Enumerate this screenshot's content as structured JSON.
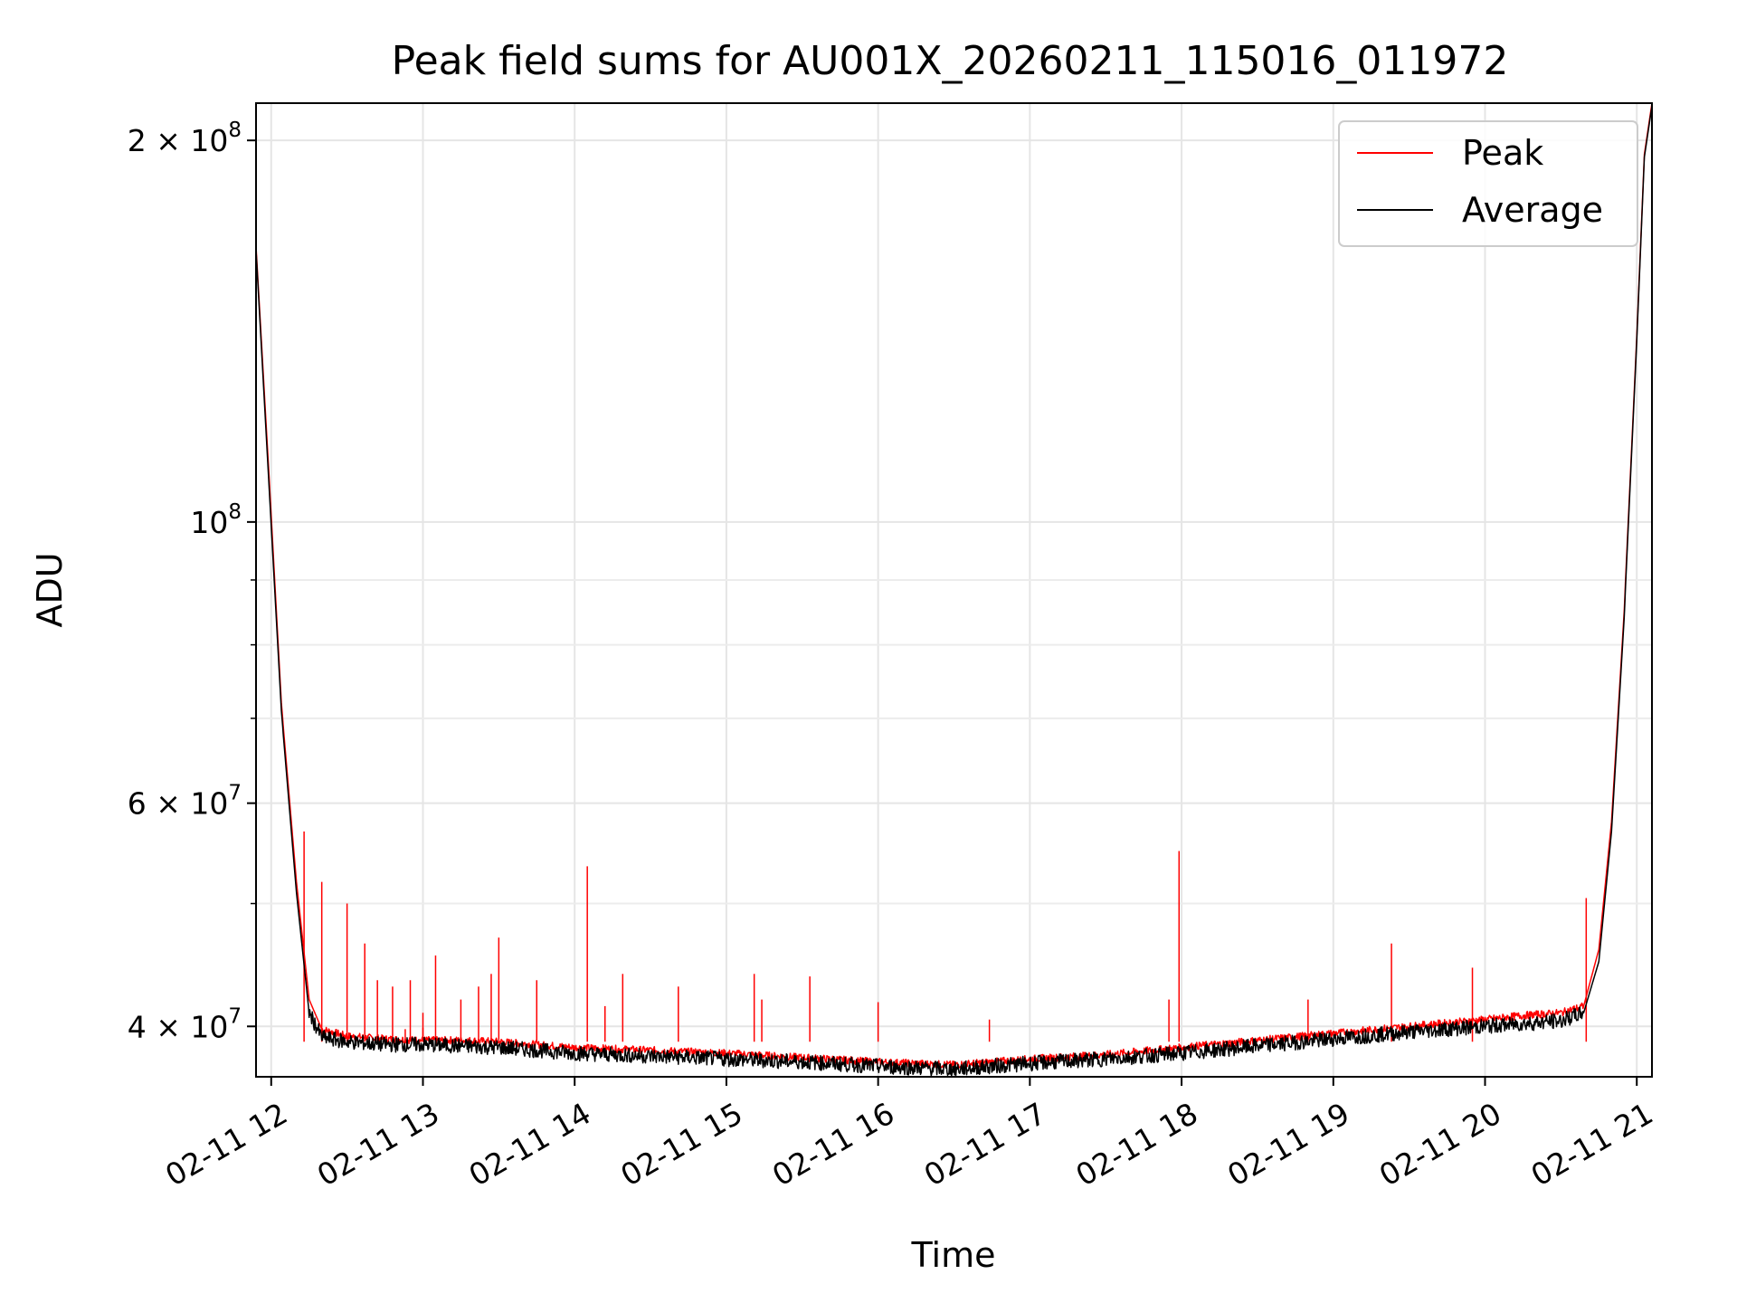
{
  "chart_data": {
    "type": "line",
    "title": "Peak field sums for AU001X_20260211_115016_011972",
    "xlabel": "Time",
    "ylabel": "ADU",
    "yscale": "log",
    "ylim": [
      36500000,
      214000000
    ],
    "xlim": [
      "2026-02-11 11:54",
      "2026-02-11 21:06"
    ],
    "grid": true,
    "legend_position": "top-right",
    "x_ticks": [
      {
        "value": "2026-02-11 12:00",
        "label": "02-11 12"
      },
      {
        "value": "2026-02-11 13:00",
        "label": "02-11 13"
      },
      {
        "value": "2026-02-11 14:00",
        "label": "02-11 14"
      },
      {
        "value": "2026-02-11 15:00",
        "label": "02-11 15"
      },
      {
        "value": "2026-02-11 16:00",
        "label": "02-11 16"
      },
      {
        "value": "2026-02-11 17:00",
        "label": "02-11 17"
      },
      {
        "value": "2026-02-11 18:00",
        "label": "02-11 18"
      },
      {
        "value": "2026-02-11 19:00",
        "label": "02-11 19"
      },
      {
        "value": "2026-02-11 20:00",
        "label": "02-11 20"
      },
      {
        "value": "2026-02-11 21:00",
        "label": "02-11 21"
      }
    ],
    "y_major_ticks": [
      {
        "value": 40000000,
        "base": "4 × 10",
        "exp": "7"
      },
      {
        "value": 60000000,
        "base": "6 × 10",
        "exp": "7"
      },
      {
        "value": 100000000,
        "base": "10",
        "exp": "8"
      },
      {
        "value": 200000000,
        "base": "2 × 10",
        "exp": "8"
      }
    ],
    "y_minor_ticks": [
      50000000,
      70000000,
      80000000,
      90000000
    ],
    "series": [
      {
        "name": "Peak",
        "color": "#ff0000",
        "x": [
          "2026-02-11 11:54",
          "2026-02-11 11:59",
          "2026-02-11 12:04",
          "2026-02-11 12:10",
          "2026-02-11 12:15",
          "2026-02-11 12:20",
          "2026-02-11 12:30",
          "2026-02-11 12:45",
          "2026-02-11 13:00",
          "2026-02-11 13:15",
          "2026-02-11 13:30",
          "2026-02-11 13:45",
          "2026-02-11 14:00",
          "2026-02-11 14:30",
          "2026-02-11 15:00",
          "2026-02-11 15:30",
          "2026-02-11 16:00",
          "2026-02-11 16:30",
          "2026-02-11 17:00",
          "2026-02-11 17:30",
          "2026-02-11 18:00",
          "2026-02-11 18:30",
          "2026-02-11 19:00",
          "2026-02-11 19:30",
          "2026-02-11 20:00",
          "2026-02-11 20:15",
          "2026-02-11 20:30",
          "2026-02-11 20:39",
          "2026-02-11 20:45",
          "2026-02-11 20:50",
          "2026-02-11 20:55",
          "2026-02-11 21:00",
          "2026-02-11 21:03",
          "2026-02-11 21:06"
        ],
        "y": [
          165000000,
          110000000,
          72000000,
          52000000,
          42000000,
          39800000,
          39300000,
          39100000,
          39000000,
          39000000,
          38900000,
          38700000,
          38500000,
          38300000,
          38100000,
          37800000,
          37500000,
          37300000,
          37700000,
          38000000,
          38500000,
          39000000,
          39500000,
          40000000,
          40500000,
          40800000,
          41000000,
          41500000,
          46000000,
          58000000,
          85000000,
          140000000,
          195000000,
          214000000
        ],
        "spikes": [
          {
            "x": "2026-02-11 12:13",
            "y": 57000000
          },
          {
            "x": "2026-02-11 12:20",
            "y": 52000000
          },
          {
            "x": "2026-02-11 12:30",
            "y": 50000000
          },
          {
            "x": "2026-02-11 12:37",
            "y": 46500000
          },
          {
            "x": "2026-02-11 12:42",
            "y": 43500000
          },
          {
            "x": "2026-02-11 12:53",
            "y": 39800000
          },
          {
            "x": "2026-02-11 13:00",
            "y": 39900000
          },
          {
            "x": "2026-02-11 12:48",
            "y": 43000000
          },
          {
            "x": "2026-02-11 12:55",
            "y": 43500000
          },
          {
            "x": "2026-02-11 13:00",
            "y": 41000000
          },
          {
            "x": "2026-02-11 13:05",
            "y": 45500000
          },
          {
            "x": "2026-02-11 13:15",
            "y": 42000000
          },
          {
            "x": "2026-02-11 13:22",
            "y": 43000000
          },
          {
            "x": "2026-02-11 13:27",
            "y": 44000000
          },
          {
            "x": "2026-02-11 13:30",
            "y": 47000000
          },
          {
            "x": "2026-02-11 13:45",
            "y": 43500000
          },
          {
            "x": "2026-02-11 14:05",
            "y": 53500000
          },
          {
            "x": "2026-02-11 14:12",
            "y": 41500000
          },
          {
            "x": "2026-02-11 14:19",
            "y": 44000000
          },
          {
            "x": "2026-02-11 14:41",
            "y": 43000000
          },
          {
            "x": "2026-02-11 15:11",
            "y": 44000000
          },
          {
            "x": "2026-02-11 15:14",
            "y": 42000000
          },
          {
            "x": "2026-02-11 15:33",
            "y": 43800000
          },
          {
            "x": "2026-02-11 16:00",
            "y": 41800000
          },
          {
            "x": "2026-02-11 16:44",
            "y": 40500000
          },
          {
            "x": "2026-02-11 17:55",
            "y": 42000000
          },
          {
            "x": "2026-02-11 17:59",
            "y": 55000000
          },
          {
            "x": "2026-02-11 18:50",
            "y": 42000000
          },
          {
            "x": "2026-02-11 19:23",
            "y": 46500000
          },
          {
            "x": "2026-02-11 19:55",
            "y": 44500000
          },
          {
            "x": "2026-02-11 20:40",
            "y": 50500000
          }
        ]
      },
      {
        "name": "Average",
        "color": "#000000",
        "x": [
          "2026-02-11 11:54",
          "2026-02-11 11:59",
          "2026-02-11 12:04",
          "2026-02-11 12:10",
          "2026-02-11 12:15",
          "2026-02-11 12:20",
          "2026-02-11 12:30",
          "2026-02-11 12:45",
          "2026-02-11 13:00",
          "2026-02-11 13:15",
          "2026-02-11 13:30",
          "2026-02-11 13:45",
          "2026-02-11 14:00",
          "2026-02-11 14:30",
          "2026-02-11 15:00",
          "2026-02-11 15:30",
          "2026-02-11 16:00",
          "2026-02-11 16:30",
          "2026-02-11 17:00",
          "2026-02-11 17:30",
          "2026-02-11 18:00",
          "2026-02-11 18:30",
          "2026-02-11 19:00",
          "2026-02-11 19:30",
          "2026-02-11 20:00",
          "2026-02-11 20:15",
          "2026-02-11 20:30",
          "2026-02-11 20:39",
          "2026-02-11 20:45",
          "2026-02-11 20:50",
          "2026-02-11 20:55",
          "2026-02-11 21:00",
          "2026-02-11 21:03",
          "2026-02-11 21:06"
        ],
        "y": [
          164000000,
          108000000,
          71000000,
          51000000,
          41000000,
          39200000,
          38900000,
          38700000,
          38700000,
          38600000,
          38500000,
          38300000,
          38100000,
          37900000,
          37700000,
          37500000,
          37200000,
          37000000,
          37400000,
          37700000,
          38100000,
          38600000,
          39100000,
          39600000,
          40000000,
          40200000,
          40400000,
          41000000,
          45000000,
          57000000,
          84000000,
          139000000,
          194000000,
          213000000
        ]
      }
    ]
  }
}
